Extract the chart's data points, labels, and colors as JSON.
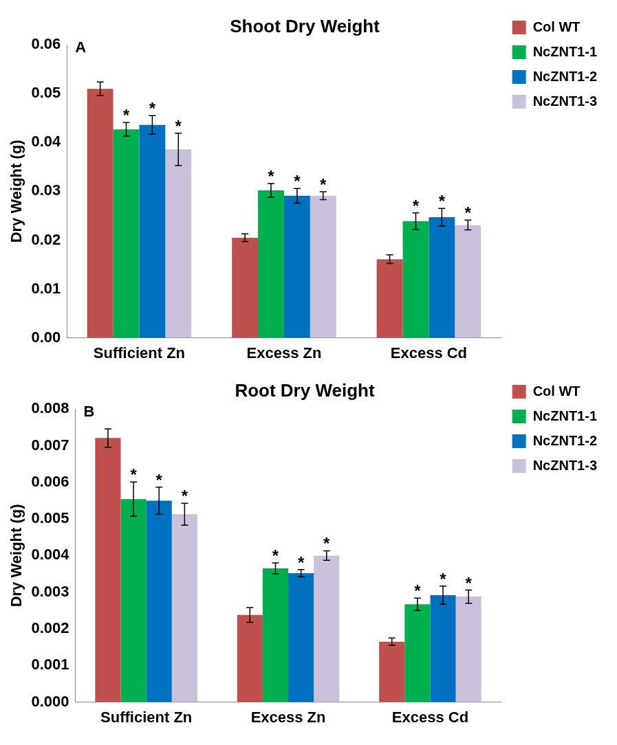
{
  "chart_data": [
    {
      "type": "bar",
      "title": "Shoot Dry Weight",
      "ylabel": "Dry Weight (g)",
      "annotations": [
        "A"
      ],
      "categories": [
        "Sufficient Zn",
        "Excess Zn",
        "Excess Cd"
      ],
      "series": [
        {
          "name": "Col WT",
          "color": "#c0504d",
          "values": [
            0.051,
            0.0205,
            0.0161
          ],
          "errors": [
            0.0014,
            0.0008,
            0.0009
          ]
        },
        {
          "name": "NcZNT1-1",
          "color": "#00b050",
          "values": [
            0.0427,
            0.0302,
            0.0239
          ],
          "errors": [
            0.0014,
            0.0014,
            0.0017
          ],
          "value_labels": [
            "*",
            "*",
            "*"
          ]
        },
        {
          "name": "NcZNT1-2",
          "color": "#0070c0",
          "values": [
            0.0436,
            0.0291,
            0.0247
          ],
          "errors": [
            0.0019,
            0.0015,
            0.0018
          ],
          "value_labels": [
            "*",
            "*",
            "*"
          ]
        },
        {
          "name": "NcZNT1-3",
          "color": "#ccc1da",
          "values": [
            0.0386,
            0.0291,
            0.0231
          ],
          "errors": [
            0.0033,
            0.0008,
            0.001
          ],
          "value_labels": [
            "*",
            "*",
            "*"
          ]
        }
      ],
      "ylim": [
        0,
        0.06
      ],
      "yticks": [
        {
          "value": 0,
          "label": "0.00"
        },
        {
          "value": 0.01,
          "label": "0.01"
        },
        {
          "value": 0.02,
          "label": "0.02"
        },
        {
          "value": 0.03,
          "label": "0.03"
        },
        {
          "value": 0.04,
          "label": "0.04"
        },
        {
          "value": 0.05,
          "label": "0.05"
        },
        {
          "value": 0.06,
          "label": "0.06"
        }
      ],
      "grid": false,
      "legend": "top right"
    },
    {
      "type": "bar",
      "title": "Root Dry Weight",
      "ylabel": "Dry Weight (g)",
      "annotations": [
        "B"
      ],
      "categories": [
        "Sufficient Zn",
        "Excess Zn",
        "Excess Cd"
      ],
      "series": [
        {
          "name": "Col WT",
          "color": "#c0504d",
          "values": [
            0.00721,
            0.00238,
            0.00165
          ],
          "errors": [
            0.00025,
            0.0002,
            0.0001
          ]
        },
        {
          "name": "NcZNT1-1",
          "color": "#00b050",
          "values": [
            0.00554,
            0.00365,
            0.00267
          ],
          "errors": [
            0.00047,
            0.00015,
            0.00017
          ],
          "value_labels": [
            "*",
            "*",
            "*"
          ]
        },
        {
          "name": "NcZNT1-2",
          "color": "#0070c0",
          "values": [
            0.0055,
            0.00352,
            0.00292
          ],
          "errors": [
            0.00037,
            0.0001,
            0.00025
          ],
          "value_labels": [
            "*",
            "*",
            "*"
          ]
        },
        {
          "name": "NcZNT1-3",
          "color": "#ccc1da",
          "values": [
            0.00513,
            0.004,
            0.00288
          ],
          "errors": [
            0.0003,
            0.00013,
            0.00018
          ],
          "value_labels": [
            "*",
            "*",
            "*"
          ]
        }
      ],
      "ylim": [
        0,
        0.008
      ],
      "yticks": [
        {
          "value": 0,
          "label": "0.000"
        },
        {
          "value": 0.001,
          "label": "0.001"
        },
        {
          "value": 0.002,
          "label": "0.002"
        },
        {
          "value": 0.003,
          "label": "0.003"
        },
        {
          "value": 0.004,
          "label": "0.004"
        },
        {
          "value": 0.005,
          "label": "0.005"
        },
        {
          "value": 0.006,
          "label": "0.006"
        },
        {
          "value": 0.007,
          "label": "0.007"
        },
        {
          "value": 0.008,
          "label": "0.008"
        }
      ],
      "grid": false,
      "legend": "top right"
    }
  ]
}
